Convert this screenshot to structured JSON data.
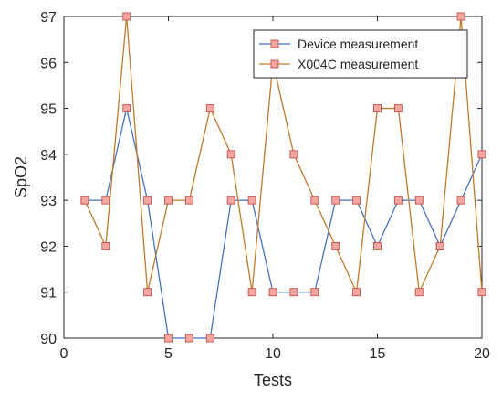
{
  "chart_data": {
    "type": "line",
    "xlabel": "Tests",
    "ylabel": "SpO2",
    "xlim": [
      0,
      20
    ],
    "ylim": [
      90,
      97
    ],
    "x_ticks": [
      0,
      5,
      10,
      15,
      20
    ],
    "y_ticks": [
      90,
      91,
      92,
      93,
      94,
      95,
      96,
      97
    ],
    "grid": false,
    "legend_position": "top-right",
    "x": [
      1,
      2,
      3,
      4,
      5,
      6,
      7,
      8,
      9,
      10,
      11,
      12,
      13,
      14,
      15,
      16,
      17,
      18,
      19,
      20
    ],
    "series": [
      {
        "name": "Device measurement",
        "line_color": "#4472C4",
        "marker_fill": "#F4A6A0",
        "marker_edge": "#C0504D",
        "values": [
          93,
          93,
          95,
          93,
          90,
          90,
          90,
          93,
          93,
          91,
          91,
          91,
          93,
          93,
          92,
          93,
          93,
          92,
          93,
          94
        ]
      },
      {
        "name": "X004C measurement",
        "line_color": "#C07A2C",
        "marker_fill": "#F4A6A0",
        "marker_edge": "#C0504D",
        "values": [
          93,
          92,
          97,
          91,
          93,
          93,
          95,
          94,
          91,
          96,
          94,
          93,
          92,
          91,
          95,
          95,
          91,
          92,
          97,
          91
        ]
      }
    ]
  }
}
